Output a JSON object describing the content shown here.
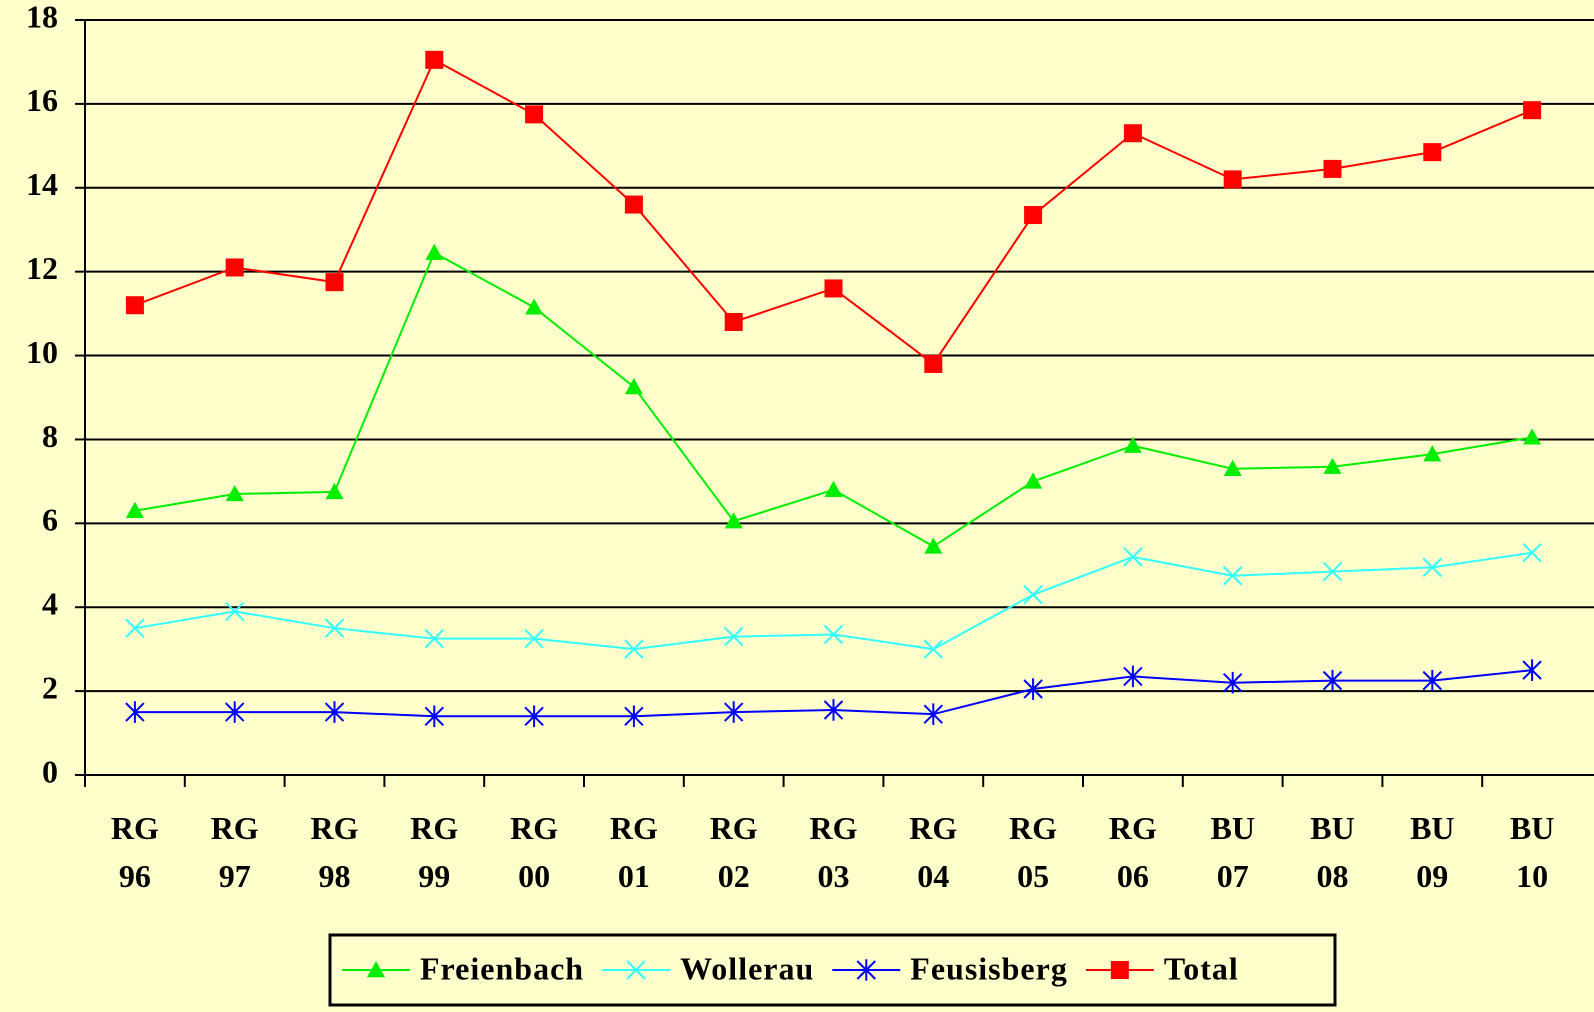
{
  "chart_data": {
    "type": "line",
    "categories": [
      "RG 96",
      "RG 97",
      "RG 98",
      "RG 99",
      "RG 00",
      "RG 01",
      "RG 02",
      "RG 03",
      "RG 04",
      "RG 05",
      "RG 06",
      "BU 07",
      "BU 08",
      "BU 09",
      "BU 10"
    ],
    "series": [
      {
        "name": "Freienbach",
        "color": "#00ee00",
        "marker": "triangle",
        "values": [
          6.3,
          6.7,
          6.75,
          12.45,
          11.15,
          9.25,
          6.05,
          6.8,
          5.45,
          7.0,
          7.85,
          7.3,
          7.35,
          7.65,
          8.05
        ]
      },
      {
        "name": "Wollerau",
        "color": "#33ffff",
        "marker": "x",
        "values": [
          3.5,
          3.9,
          3.5,
          3.25,
          3.25,
          3.0,
          3.3,
          3.35,
          3.0,
          4.3,
          5.2,
          4.75,
          4.85,
          4.95,
          5.3
        ]
      },
      {
        "name": "Feusisberg",
        "color": "#0000ff",
        "marker": "asterisk",
        "values": [
          1.5,
          1.5,
          1.5,
          1.4,
          1.4,
          1.4,
          1.5,
          1.55,
          1.45,
          2.05,
          2.35,
          2.2,
          2.25,
          2.25,
          2.5
        ]
      },
      {
        "name": "Total",
        "color": "#ff0000",
        "marker": "square",
        "values": [
          11.2,
          12.1,
          11.75,
          17.05,
          15.75,
          13.6,
          10.8,
          11.6,
          9.8,
          13.35,
          15.3,
          14.2,
          14.45,
          14.85,
          15.85
        ]
      }
    ],
    "ylim": [
      0,
      18
    ],
    "yticks": [
      0,
      2,
      4,
      6,
      8,
      10,
      12,
      14,
      16,
      18
    ],
    "grid": true,
    "legend": "bottom"
  }
}
